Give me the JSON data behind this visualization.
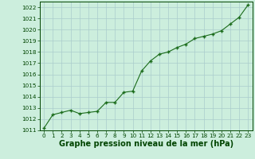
{
  "x": [
    0,
    1,
    2,
    3,
    4,
    5,
    6,
    7,
    8,
    9,
    10,
    11,
    12,
    13,
    14,
    15,
    16,
    17,
    18,
    19,
    20,
    21,
    22,
    23
  ],
  "y": [
    1011.2,
    1012.4,
    1012.6,
    1012.8,
    1012.5,
    1012.6,
    1012.7,
    1013.5,
    1013.5,
    1014.4,
    1014.5,
    1016.3,
    1017.2,
    1017.8,
    1018.0,
    1018.4,
    1018.7,
    1019.2,
    1019.4,
    1019.6,
    1019.9,
    1020.5,
    1021.1,
    1022.2
  ],
  "ylim": [
    1011,
    1022.5
  ],
  "yticks": [
    1011,
    1012,
    1013,
    1014,
    1015,
    1016,
    1017,
    1018,
    1019,
    1020,
    1021,
    1022
  ],
  "xlim": [
    -0.5,
    23.5
  ],
  "xticks": [
    0,
    1,
    2,
    3,
    4,
    5,
    6,
    7,
    8,
    9,
    10,
    11,
    12,
    13,
    14,
    15,
    16,
    17,
    18,
    19,
    20,
    21,
    22,
    23
  ],
  "line_color": "#1a6b1a",
  "marker_color": "#1a6b1a",
  "bg_color": "#cceedd",
  "grid_color": "#aacccc",
  "xlabel": "Graphe pression niveau de la mer (hPa)",
  "xlabel_color": "#004400",
  "tick_color": "#004400",
  "tick_fontsize": 5.2,
  "xlabel_fontsize": 7.0,
  "marker_size": 3.5,
  "line_width": 0.8
}
